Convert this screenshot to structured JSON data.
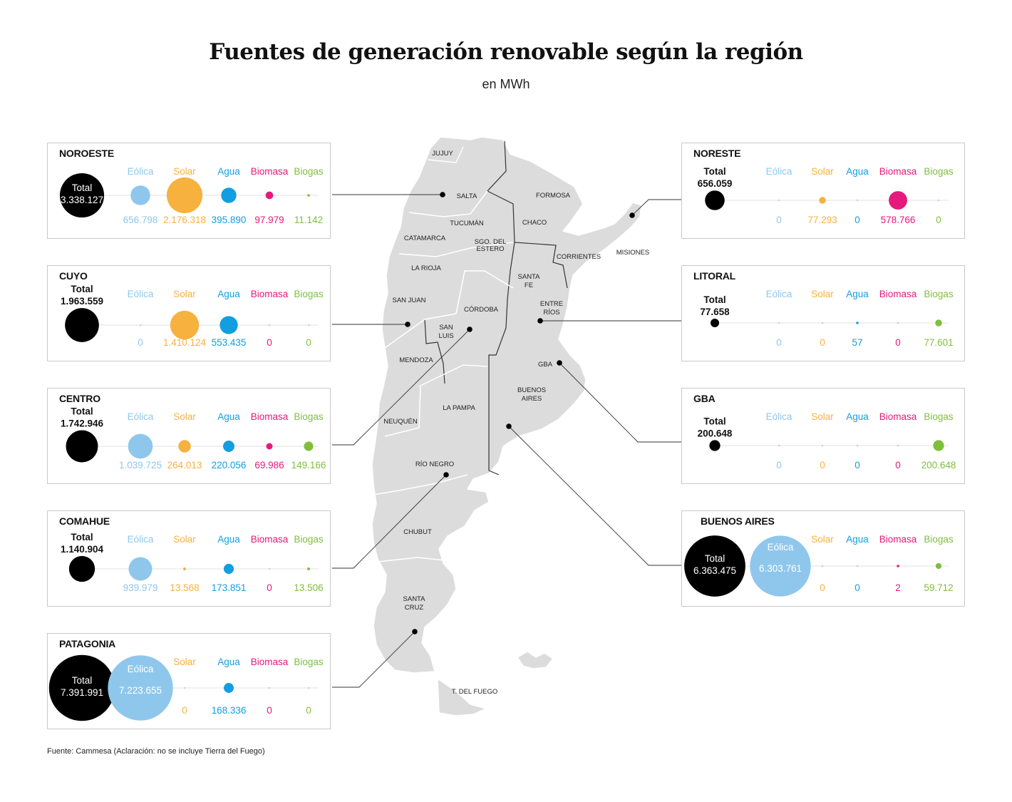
{
  "title": "Fuentes de generación renovable según la región",
  "subtitle": "en MWh",
  "footer": "Fuente: Cammesa (Aclaración: no se incluye Tierra del Fuego)",
  "colors": {
    "total": "#000000",
    "eolica": "#8fc7ec",
    "solar": "#f7b13e",
    "agua": "#129ee0",
    "biomasa": "#e6197c",
    "biogas": "#7fbf3c"
  },
  "chart_data": {
    "type": "bubble",
    "unit": "MWh",
    "total_label": "Total",
    "sources": [
      "Eólica",
      "Solar",
      "Agua",
      "Biomasa",
      "Biogas"
    ],
    "regions": [
      {
        "name": "NOROESTE",
        "total": 3338127,
        "total_text": "3.338.127",
        "values": [
          656798,
          2176318,
          395890,
          97979,
          11142
        ],
        "value_texts": [
          "656.798",
          "2.176.318",
          "395.890",
          "97.979",
          "11.142"
        ]
      },
      {
        "name": "CUYO",
        "total": 1963559,
        "total_text": "1.963.559",
        "values": [
          0,
          1410124,
          553435,
          0,
          0
        ],
        "value_texts": [
          "0",
          "1.410.124",
          "553.435",
          "0",
          "0"
        ]
      },
      {
        "name": "CENTRO",
        "total": 1742946,
        "total_text": "1.742.946",
        "values": [
          1039725,
          264013,
          220056,
          69986,
          149166
        ],
        "value_texts": [
          "1.039.725",
          "264.013",
          "220.056",
          "69.986",
          "149.166"
        ]
      },
      {
        "name": "COMAHUE",
        "total": 1140904,
        "total_text": "1.140.904",
        "values": [
          939979,
          13568,
          173851,
          0,
          13506
        ],
        "value_texts": [
          "939.979",
          "13.568",
          "173.851",
          "0",
          "13.506"
        ]
      },
      {
        "name": "PATAGONIA",
        "total": 7391991,
        "total_text": "7.391.991",
        "values": [
          7223655,
          0,
          168336,
          0,
          0
        ],
        "value_texts": [
          "7.223.655",
          "0",
          "168.336",
          "0",
          "0"
        ]
      },
      {
        "name": "NORESTE",
        "total": 656059,
        "total_text": "656.059",
        "values": [
          0,
          77293,
          0,
          578766,
          0
        ],
        "value_texts": [
          "0",
          "77.293",
          "0",
          "578.766",
          "0"
        ]
      },
      {
        "name": "LITORAL",
        "total": 77658,
        "total_text": "77.658",
        "values": [
          0,
          0,
          57,
          0,
          77601
        ],
        "value_texts": [
          "0",
          "0",
          "57",
          "0",
          "77.601"
        ]
      },
      {
        "name": "GBA",
        "total": 200648,
        "total_text": "200.648",
        "values": [
          0,
          0,
          0,
          0,
          200648
        ],
        "value_texts": [
          "0",
          "0",
          "0",
          "0",
          "200.648"
        ]
      },
      {
        "name": "BUENOS AIRES",
        "total": 6363475,
        "total_text": "6.363.475",
        "values": [
          6303761,
          0,
          0,
          2,
          59712
        ],
        "value_texts": [
          "6.303.761",
          "0",
          "0",
          "2",
          "59.712"
        ]
      }
    ]
  },
  "map": {
    "provinces": [
      "JUJUY",
      "SALTA",
      "FORMOSA",
      "TUCUMÁN",
      "CHACO",
      "CATAMARCA",
      "SGO. DEL ESTERO",
      "CORRIENTES",
      "MISIONES",
      "LA RIOJA",
      "SANTA FE",
      "SAN JUAN",
      "ENTRE RÍOS",
      "CÓRDOBA",
      "SAN LUIS",
      "MENDOZA",
      "GBA",
      "BUENOS AIRES",
      "LA PAMPA",
      "NEUQUÉN",
      "RÍO NEGRO",
      "CHUBUT",
      "SANTA CRUZ",
      "T. DEL FUEGO"
    ]
  }
}
